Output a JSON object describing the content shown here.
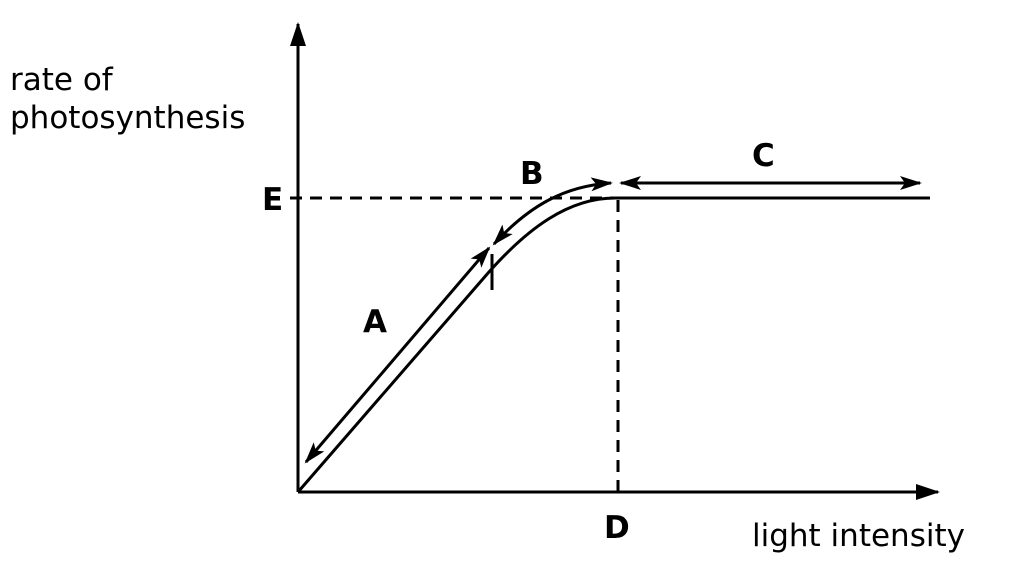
{
  "y_axis_label_line1": "rate of",
  "y_axis_label_line2": "photosynthesis",
  "x_axis_label": "light intensity",
  "points": {
    "A": "A",
    "B": "B",
    "C": "C",
    "D": "D",
    "E": "E"
  },
  "colors": {
    "line": "#000000",
    "background": "#ffffff"
  }
}
